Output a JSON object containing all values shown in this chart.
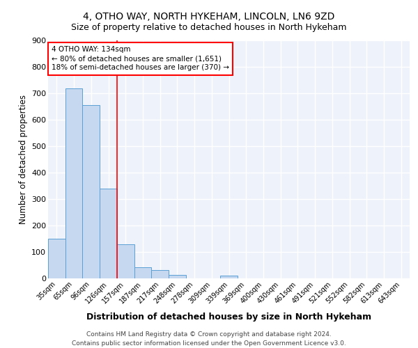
{
  "title1": "4, OTHO WAY, NORTH HYKEHAM, LINCOLN, LN6 9ZD",
  "title2": "Size of property relative to detached houses in North Hykeham",
  "xlabel": "Distribution of detached houses by size in North Hykeham",
  "ylabel": "Number of detached properties",
  "categories": [
    "35sqm",
    "65sqm",
    "96sqm",
    "126sqm",
    "157sqm",
    "187sqm",
    "217sqm",
    "248sqm",
    "278sqm",
    "309sqm",
    "339sqm",
    "369sqm",
    "400sqm",
    "430sqm",
    "461sqm",
    "491sqm",
    "521sqm",
    "552sqm",
    "582sqm",
    "613sqm",
    "643sqm"
  ],
  "values": [
    150,
    718,
    653,
    340,
    130,
    42,
    32,
    12,
    0,
    0,
    10,
    0,
    0,
    0,
    0,
    0,
    0,
    0,
    0,
    0,
    0
  ],
  "bar_color": "#c5d8f0",
  "bar_edge_color": "#5a9fd4",
  "red_line_x": 3.5,
  "annotation_text": "4 OTHO WAY: 134sqm\n← 80% of detached houses are smaller (1,651)\n18% of semi-detached houses are larger (370) →",
  "annotation_box_color": "white",
  "annotation_box_edge": "red",
  "footer": "Contains HM Land Registry data © Crown copyright and database right 2024.\nContains public sector information licensed under the Open Government Licence v3.0.",
  "ylim": [
    0,
    900
  ],
  "yticks": [
    0,
    100,
    200,
    300,
    400,
    500,
    600,
    700,
    800,
    900
  ],
  "bg_color": "#eef3fb",
  "grid_color": "white",
  "title1_fontsize": 10,
  "title2_fontsize": 9,
  "xlabel_fontsize": 9,
  "ylabel_fontsize": 8.5,
  "footer_fontsize": 6.5
}
